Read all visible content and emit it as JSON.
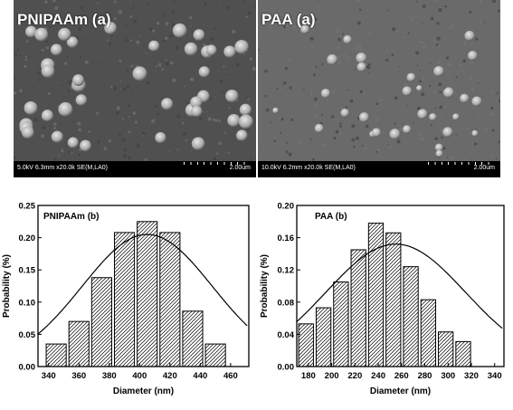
{
  "sem_images": [
    {
      "label": "PNIPAAm (a)",
      "meta": "5.0kV 6.3mm x20.0k SE(M,LA0)",
      "scale": "2.00um"
    },
    {
      "label": "PAA (a)",
      "meta": "10.0kV 6.2mm x20.0k SE(M,LA0)",
      "scale": "2.00um"
    }
  ],
  "chart_data": [
    {
      "type": "bar",
      "panel_label": "PNIPAAm (b)",
      "xlabel": "Diameter (nm)",
      "ylabel": "Probability (%)",
      "x": [
        340,
        360,
        380,
        400,
        420,
        440,
        460
      ],
      "xlim": [
        333,
        472
      ],
      "ylim": [
        0,
        0.25
      ],
      "yticks": [
        "0.00",
        "0.05",
        "0.10",
        "0.15",
        "0.20",
        "0.25"
      ],
      "bin_width": 15,
      "bins": [
        {
          "center": 345,
          "value": 0.035
        },
        {
          "center": 360,
          "value": 0.07
        },
        {
          "center": 375,
          "value": 0.138
        },
        {
          "center": 390,
          "value": 0.208
        },
        {
          "center": 405,
          "value": 0.225
        },
        {
          "center": 420,
          "value": 0.208
        },
        {
          "center": 435,
          "value": 0.086
        },
        {
          "center": 450,
          "value": 0.035
        }
      ],
      "fit_curve": {
        "mean": 405,
        "peak": 0.205,
        "sigma": 43
      },
      "hatch": "diagonal",
      "grid": false,
      "legend": "none"
    },
    {
      "type": "bar",
      "panel_label": "PAA (b)",
      "xlabel": "Diameter (nm)",
      "ylabel": "Probability (%)",
      "x": [
        180,
        200,
        220,
        240,
        260,
        280,
        300,
        320,
        340
      ],
      "xlim": [
        170,
        348
      ],
      "ylim": [
        0,
        0.2
      ],
      "yticks": [
        "0.00",
        "0.04",
        "0.08",
        "0.12",
        "0.16",
        "0.20"
      ],
      "bin_width": 15,
      "bins": [
        {
          "center": 178,
          "value": 0.053
        },
        {
          "center": 193,
          "value": 0.073
        },
        {
          "center": 208,
          "value": 0.105
        },
        {
          "center": 223,
          "value": 0.145
        },
        {
          "center": 238,
          "value": 0.178
        },
        {
          "center": 253,
          "value": 0.166
        },
        {
          "center": 268,
          "value": 0.124
        },
        {
          "center": 283,
          "value": 0.083
        },
        {
          "center": 298,
          "value": 0.043
        },
        {
          "center": 313,
          "value": 0.031
        }
      ],
      "fit_curve": {
        "mean": 255,
        "peak": 0.152,
        "sigma": 60
      },
      "hatch": "diagonal",
      "grid": false,
      "legend": "none"
    }
  ]
}
